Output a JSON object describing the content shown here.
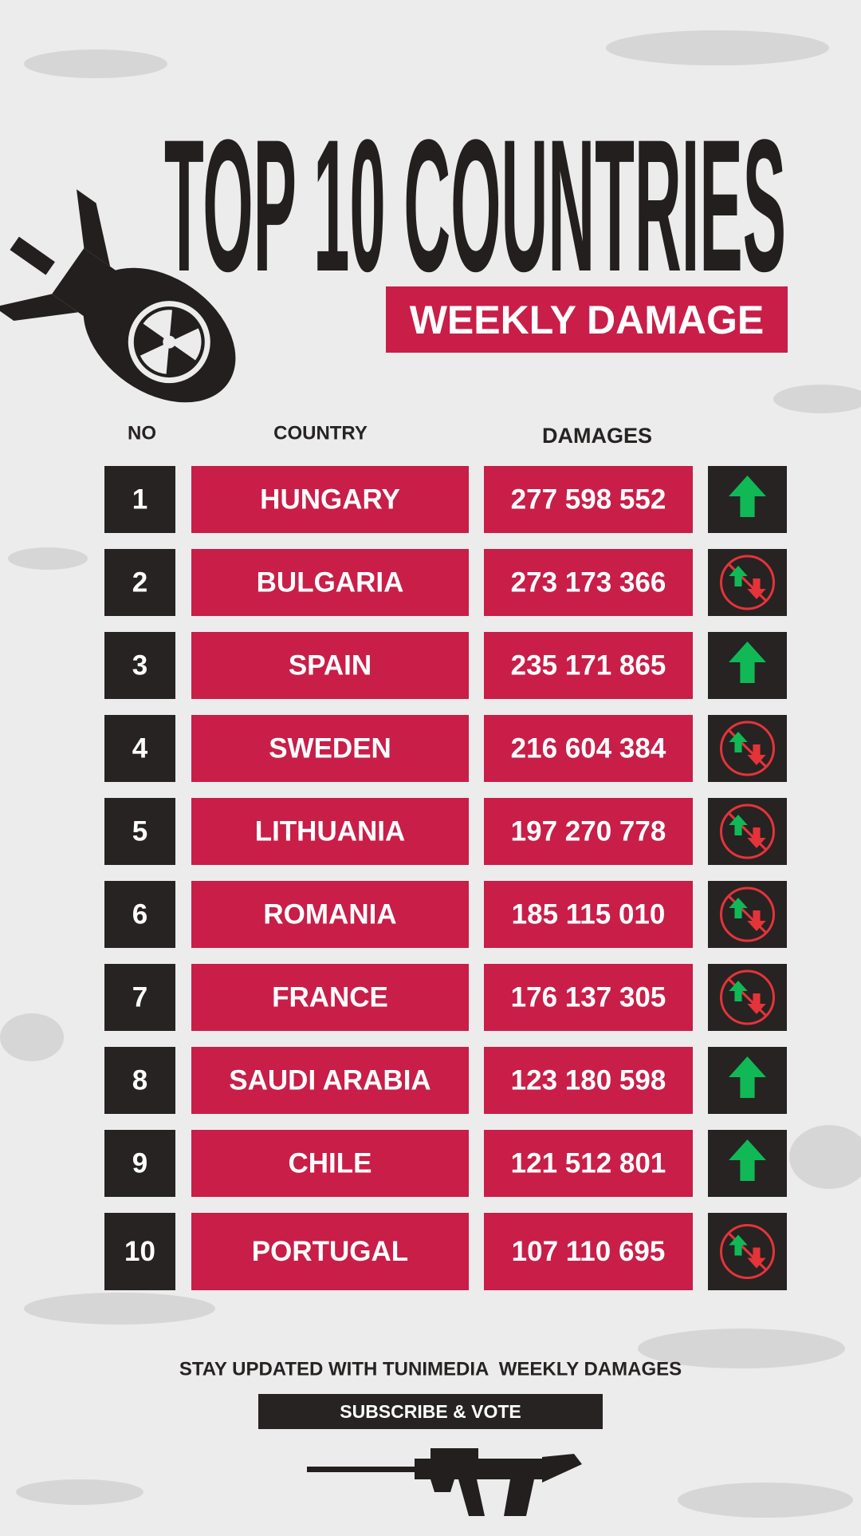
{
  "header": {
    "title": "TOP 10 COUNTRIES",
    "subtitle": "WEEKLY DAMAGE"
  },
  "table": {
    "columns": [
      "NO",
      "COUNTRY",
      "DAMAGES"
    ],
    "rows": [
      [
        "1",
        "HUNGARY",
        "277 598 552"
      ],
      [
        "2",
        "BULGARIA",
        "273 173 366"
      ],
      [
        "3",
        "SPAIN",
        "235 171 865"
      ],
      [
        "4",
        "SWEDEN",
        "216 604 384"
      ],
      [
        "5",
        "LITHUANIA",
        "197 270 778"
      ],
      [
        "6",
        "ROMANIA",
        "185 115 010"
      ],
      [
        "7",
        "FRANCE",
        "176 137 305"
      ],
      [
        "8",
        "SAUDI ARABIA",
        "123 180 598"
      ],
      [
        "9",
        "CHILE",
        "121 512 801"
      ],
      [
        "10",
        "PORTUGAL",
        "107 110 695"
      ]
    ],
    "trends": [
      "up",
      "mixed",
      "up",
      "mixed",
      "mixed",
      "mixed",
      "mixed",
      "up",
      "up",
      "mixed"
    ]
  },
  "footer": {
    "tagline": "STAY UPDATED WITH TUNIMEDIA  WEEKLY DAMAGES",
    "button": "SUBSCRIBE & VOTE"
  }
}
